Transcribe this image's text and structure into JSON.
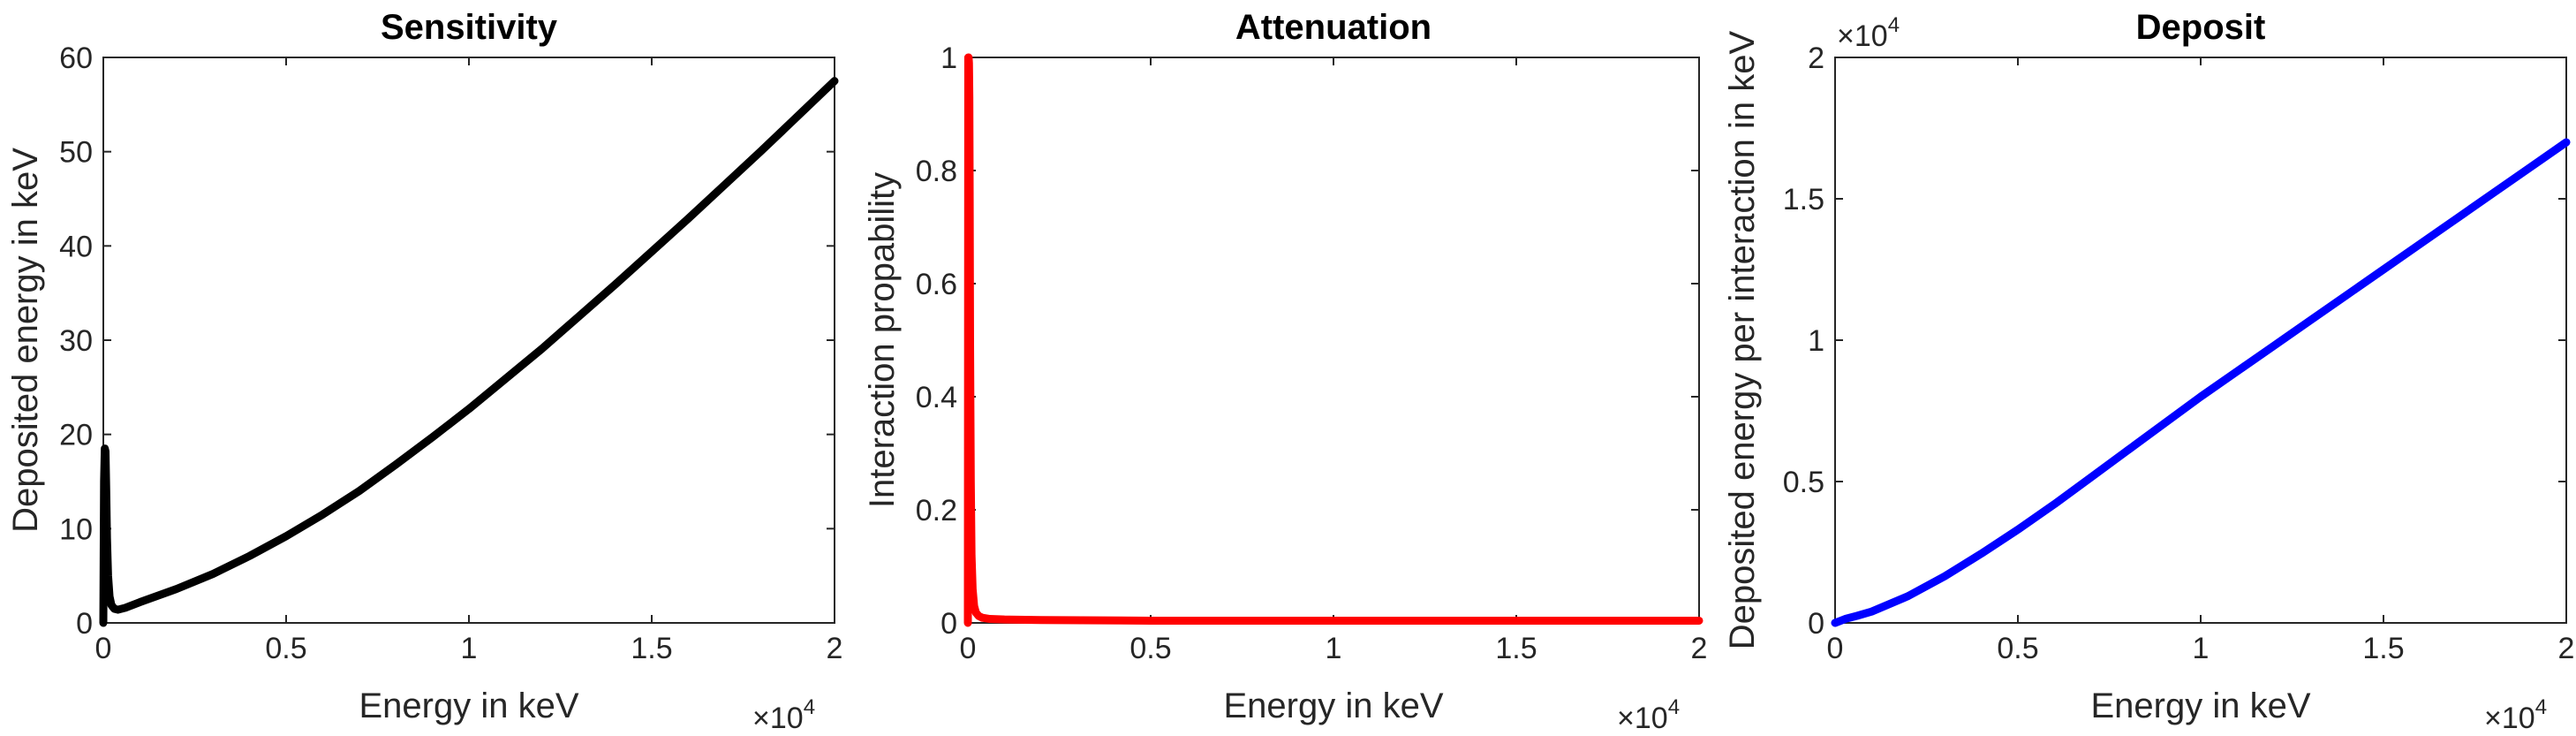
{
  "chart_data": [
    {
      "type": "line",
      "title": "Sensitivity",
      "xlabel": "Energy in keV",
      "ylabel": "Deposited energy in keV",
      "xlim": [
        0,
        20000
      ],
      "ylim": [
        0,
        60
      ],
      "x_ticks": [
        0,
        5000,
        10000,
        15000,
        20000
      ],
      "x_tick_labels": [
        "0",
        "0.5",
        "1",
        "1.5",
        "2"
      ],
      "x_exponent": "×10",
      "x_exponent_power": "4",
      "y_ticks": [
        0,
        10,
        20,
        30,
        40,
        50,
        60
      ],
      "y_tick_labels": [
        "0",
        "10",
        "20",
        "30",
        "40",
        "50",
        "60"
      ],
      "grid": false,
      "color": "#000000",
      "x": [
        0,
        20,
        40,
        60,
        80,
        100,
        130,
        170,
        220,
        300,
        400,
        600,
        1000,
        2000,
        3000,
        4000,
        5000,
        6000,
        7000,
        8000,
        9000,
        10000,
        11000,
        12000,
        13000,
        14000,
        15000,
        16000,
        17000,
        18000,
        19000,
        20000
      ],
      "y": [
        0,
        15,
        18.5,
        18.2,
        14,
        9,
        5,
        2.8,
        1.9,
        1.5,
        1.4,
        1.6,
        2.2,
        3.6,
        5.2,
        7.1,
        9.2,
        11.5,
        14,
        16.8,
        19.7,
        22.7,
        25.9,
        29.1,
        32.5,
        35.9,
        39.4,
        42.9,
        46.5,
        50.1,
        53.8,
        57.5
      ]
    },
    {
      "type": "line",
      "title": "Attenuation",
      "xlabel": "Energy in keV",
      "ylabel": "Interaction propability",
      "xlim": [
        0,
        20000
      ],
      "ylim": [
        0,
        1
      ],
      "x_ticks": [
        0,
        5000,
        10000,
        15000,
        20000
      ],
      "x_tick_labels": [
        "0",
        "0.5",
        "1",
        "1.5",
        "2"
      ],
      "x_exponent": "×10",
      "x_exponent_power": "4",
      "y_ticks": [
        0,
        0.2,
        0.4,
        0.6,
        0.8,
        1
      ],
      "y_tick_labels": [
        "0",
        "0.2",
        "0.4",
        "0.6",
        "0.8",
        "1"
      ],
      "grid": false,
      "color": "#ff0000",
      "x": [
        0,
        10,
        20,
        30,
        40,
        50,
        60,
        80,
        100,
        130,
        170,
        220,
        300,
        400,
        600,
        1000,
        2000,
        5000,
        10000,
        15000,
        20000
      ],
      "y": [
        0,
        1.0,
        1.0,
        0.99,
        0.93,
        0.75,
        0.5,
        0.25,
        0.12,
        0.06,
        0.03,
        0.018,
        0.012,
        0.009,
        0.007,
        0.006,
        0.005,
        0.004,
        0.004,
        0.004,
        0.004
      ]
    },
    {
      "type": "line",
      "title": "Deposit",
      "xlabel": "Energy in keV",
      "ylabel": "Deposited energy per interaction in keV",
      "xlim": [
        0,
        20000
      ],
      "ylim": [
        0,
        20000
      ],
      "x_ticks": [
        0,
        5000,
        10000,
        15000,
        20000
      ],
      "x_tick_labels": [
        "0",
        "0.5",
        "1",
        "1.5",
        "2"
      ],
      "x_exponent": "×10",
      "x_exponent_power": "4",
      "y_ticks": [
        0,
        5000,
        10000,
        15000,
        20000
      ],
      "y_tick_labels": [
        "0",
        "0.5",
        "1",
        "1.5",
        "2"
      ],
      "y_exponent": "×10",
      "y_exponent_power": "4",
      "grid": false,
      "color": "#0000ff",
      "x": [
        0,
        100,
        300,
        600,
        1000,
        2000,
        3000,
        4000,
        5000,
        6000,
        7000,
        8000,
        9000,
        10000,
        11000,
        12000,
        13000,
        14000,
        15000,
        16000,
        17000,
        18000,
        19000,
        20000
      ],
      "y": [
        0,
        50,
        150,
        250,
        400,
        950,
        1650,
        2450,
        3300,
        4200,
        5150,
        6100,
        7050,
        8000,
        8900,
        9800,
        10700,
        11600,
        12500,
        13400,
        14300,
        15200,
        16100,
        17000
      ]
    }
  ]
}
